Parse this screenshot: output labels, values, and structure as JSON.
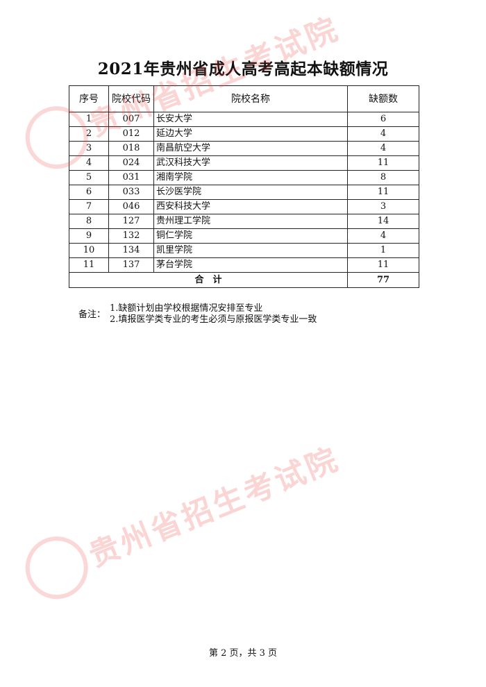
{
  "title": "2021年贵州省成人高考高起本缺额情况",
  "table": {
    "headers": [
      "序号",
      "院校代码",
      "院校名称",
      "缺额数"
    ],
    "rows": [
      [
        "1",
        "007",
        "长安大学",
        "6"
      ],
      [
        "2",
        "012",
        "延边大学",
        "4"
      ],
      [
        "3",
        "018",
        "南昌航空大学",
        "4"
      ],
      [
        "4",
        "024",
        "武汉科技大学",
        "11"
      ],
      [
        "5",
        "031",
        "湘南学院",
        "8"
      ],
      [
        "6",
        "033",
        "长沙医学院",
        "11"
      ],
      [
        "7",
        "046",
        "西安科技大学",
        "3"
      ],
      [
        "8",
        "127",
        "贵州理工学院",
        "14"
      ],
      [
        "9",
        "132",
        "铜仁学院",
        "4"
      ],
      [
        "10",
        "134",
        "凯里学院",
        "1"
      ],
      [
        "11",
        "137",
        "茅台学院",
        "11"
      ]
    ],
    "total_label": "合　计",
    "total_value": "77"
  },
  "notes": {
    "label": "备注：",
    "items": [
      "1.缺额计划由学校根据情况安排至专业",
      "2.填报医学类专业的考生必须与原报医学类专业一致"
    ]
  },
  "footer": "第 2 页，共 3 页",
  "watermark": {
    "text": "贵州省招生考试院",
    "color": "#eb3c3c"
  }
}
